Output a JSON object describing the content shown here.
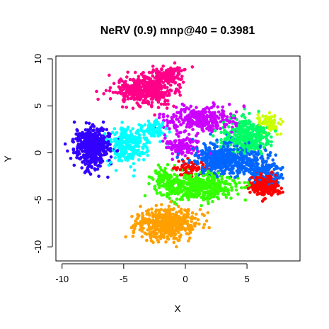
{
  "chart_data": {
    "type": "scatter",
    "title": "NeRV (0.9) mnp@40 = 0.3981",
    "xlabel": "X",
    "ylabel": "Y",
    "xlim": [
      -10.5,
      9.3
    ],
    "ylim": [
      -11.5,
      10.3
    ],
    "xticks": [
      -10,
      -5,
      0,
      5
    ],
    "yticks": [
      -10,
      -5,
      0,
      5,
      10
    ],
    "xtick_labels": [
      "-10",
      "-5",
      "0",
      "5"
    ],
    "ytick_labels": [
      "-10",
      "-5",
      "0",
      "5",
      "10"
    ],
    "grid": false,
    "legend": "none",
    "marker": "filled-circle",
    "series": [
      {
        "color": "#FF0088",
        "clusters": [
          {
            "center": [
              -3.2,
              6.6
            ],
            "spread": [
              2.1,
              1.3
            ],
            "count": 480
          },
          {
            "center": [
              -1.5,
              8.3
            ],
            "spread": [
              1.2,
              0.8
            ],
            "count": 120
          }
        ]
      },
      {
        "color": "#3300FF",
        "clusters": [
          {
            "center": [
              -7.6,
              0.6
            ],
            "spread": [
              1.3,
              1.8
            ],
            "count": 520
          }
        ]
      },
      {
        "color": "#00FFFF",
        "clusters": [
          {
            "center": [
              -4.6,
              0.9
            ],
            "spread": [
              1.4,
              1.8
            ],
            "count": 260
          },
          {
            "center": [
              -2.6,
              2.4
            ],
            "spread": [
              0.9,
              0.9
            ],
            "count": 80
          }
        ]
      },
      {
        "color": "#CC00FF",
        "clusters": [
          {
            "center": [
              1.3,
              3.6
            ],
            "spread": [
              2.6,
              1.3
            ],
            "count": 300
          },
          {
            "center": [
              -0.2,
              0.8
            ],
            "spread": [
              1.2,
              1.0
            ],
            "count": 110
          }
        ]
      },
      {
        "color": "#FFA000",
        "clusters": [
          {
            "center": [
              -1.4,
              -7.6
            ],
            "spread": [
              2.1,
              1.5
            ],
            "count": 520
          }
        ]
      },
      {
        "color": "#33FF00",
        "clusters": [
          {
            "center": [
              1.2,
              -3.6
            ],
            "spread": [
              2.6,
              1.2
            ],
            "count": 480
          },
          {
            "center": [
              -1.6,
              -2.6
            ],
            "spread": [
              1.0,
              1.0
            ],
            "count": 80
          }
        ]
      },
      {
        "color": "#FF0000",
        "clusters": [
          {
            "center": [
              6.4,
              -3.4
            ],
            "spread": [
              1.0,
              1.0
            ],
            "count": 260
          },
          {
            "center": [
              0.6,
              -1.6
            ],
            "spread": [
              1.3,
              0.8
            ],
            "count": 60
          }
        ]
      },
      {
        "color": "#00FF66",
        "clusters": [
          {
            "center": [
              5.0,
              1.8
            ],
            "spread": [
              1.8,
              1.6
            ],
            "count": 340
          }
        ]
      },
      {
        "color": "#CCFF00",
        "clusters": [
          {
            "center": [
              6.6,
              3.2
            ],
            "spread": [
              1.0,
              1.0
            ],
            "count": 80
          }
        ]
      },
      {
        "color": "#0066FF",
        "clusters": [
          {
            "center": [
              3.2,
              -0.6
            ],
            "spread": [
              2.6,
              1.6
            ],
            "count": 520
          },
          {
            "center": [
              6.5,
              -2.0
            ],
            "spread": [
              1.3,
              1.2
            ],
            "count": 120
          }
        ]
      }
    ]
  }
}
